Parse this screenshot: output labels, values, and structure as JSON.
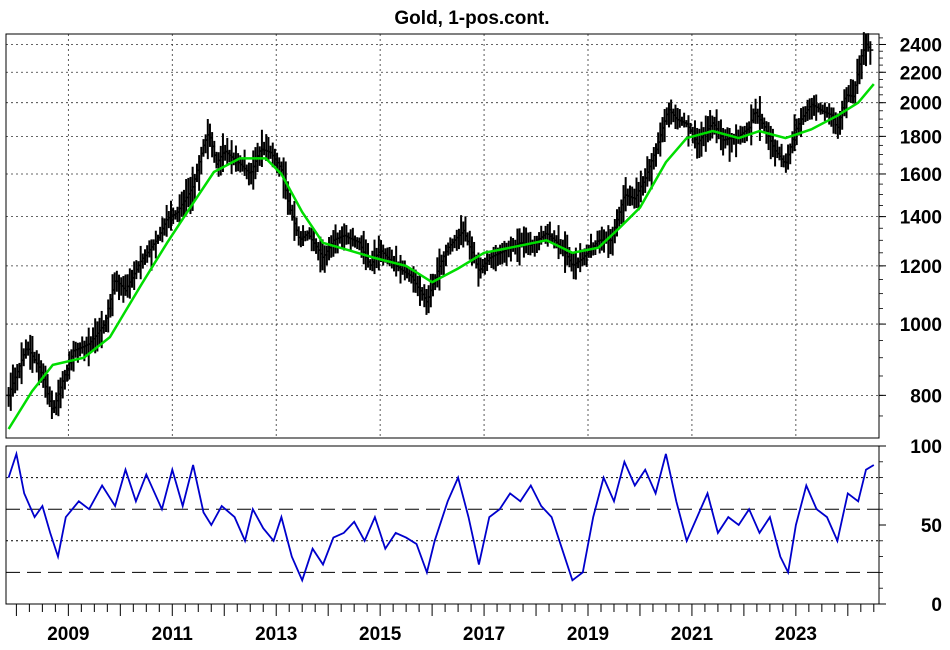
{
  "chart_data": [
    {
      "type": "bar",
      "subtype": "ohlc",
      "title": "Gold, 1-pos.cont.",
      "xlim": [
        2007.8,
        2024.6
      ],
      "ylim": [
        700,
        2480
      ],
      "y_scale": "log",
      "grid": true,
      "yticks": [
        800,
        1000,
        1200,
        1400,
        1600,
        1800,
        2000,
        2200,
        2400
      ],
      "ytick_labels": [
        "800",
        "1000",
        "1200",
        "1400",
        "1600",
        "1800",
        "2000",
        "2200",
        "2400"
      ],
      "xticks": [
        2009,
        2011,
        2013,
        2015,
        2017,
        2019,
        2021,
        2023
      ],
      "xtick_labels": [
        "2009",
        "2011",
        "2013",
        "2015",
        "2017",
        "2019",
        "2021",
        "2023"
      ],
      "colors": {
        "bars": "#000000",
        "moving_average": "#00dd00"
      },
      "anchors": [
        [
          2007.85,
          800
        ],
        [
          2008.2,
          930
        ],
        [
          2008.45,
          870
        ],
        [
          2008.7,
          760
        ],
        [
          2008.85,
          820
        ],
        [
          2009.1,
          920
        ],
        [
          2009.4,
          940
        ],
        [
          2009.7,
          1000
        ],
        [
          2009.9,
          1150
        ],
        [
          2010.1,
          1110
        ],
        [
          2010.4,
          1220
        ],
        [
          2010.7,
          1300
        ],
        [
          2010.9,
          1390
        ],
        [
          2011.1,
          1420
        ],
        [
          2011.4,
          1540
        ],
        [
          2011.6,
          1750
        ],
        [
          2011.7,
          1820
        ],
        [
          2011.85,
          1650
        ],
        [
          2012.0,
          1720
        ],
        [
          2012.3,
          1650
        ],
        [
          2012.5,
          1600
        ],
        [
          2012.7,
          1730
        ],
        [
          2012.9,
          1710
        ],
        [
          2013.1,
          1620
        ],
        [
          2013.25,
          1440
        ],
        [
          2013.45,
          1300
        ],
        [
          2013.6,
          1330
        ],
        [
          2013.9,
          1230
        ],
        [
          2014.1,
          1300
        ],
        [
          2014.3,
          1320
        ],
        [
          2014.6,
          1290
        ],
        [
          2014.8,
          1200
        ],
        [
          2015.0,
          1260
        ],
        [
          2015.3,
          1200
        ],
        [
          2015.6,
          1160
        ],
        [
          2015.9,
          1070
        ],
        [
          2016.1,
          1180
        ],
        [
          2016.3,
          1270
        ],
        [
          2016.6,
          1340
        ],
        [
          2016.9,
          1180
        ],
        [
          2017.1,
          1230
        ],
        [
          2017.4,
          1260
        ],
        [
          2017.7,
          1290
        ],
        [
          2017.9,
          1280
        ],
        [
          2018.2,
          1330
        ],
        [
          2018.5,
          1270
        ],
        [
          2018.7,
          1200
        ],
        [
          2018.9,
          1230
        ],
        [
          2019.2,
          1300
        ],
        [
          2019.45,
          1300
        ],
        [
          2019.7,
          1500
        ],
        [
          2019.9,
          1480
        ],
        [
          2020.1,
          1580
        ],
        [
          2020.3,
          1720
        ],
        [
          2020.55,
          1960
        ],
        [
          2020.7,
          1900
        ],
        [
          2020.9,
          1870
        ],
        [
          2021.1,
          1760
        ],
        [
          2021.4,
          1880
        ],
        [
          2021.6,
          1780
        ],
        [
          2021.9,
          1800
        ],
        [
          2022.1,
          1850
        ],
        [
          2022.2,
          1950
        ],
        [
          2022.4,
          1850
        ],
        [
          2022.6,
          1720
        ],
        [
          2022.8,
          1650
        ],
        [
          2022.95,
          1800
        ],
        [
          2023.1,
          1900
        ],
        [
          2023.3,
          1990
        ],
        [
          2023.5,
          1950
        ],
        [
          2023.7,
          1920
        ],
        [
          2023.8,
          1840
        ],
        [
          2023.95,
          2050
        ],
        [
          2024.1,
          2040
        ],
        [
          2024.25,
          2300
        ],
        [
          2024.35,
          2400
        ],
        [
          2024.45,
          2350
        ]
      ],
      "moving_average": [
        [
          2007.85,
          720
        ],
        [
          2008.3,
          810
        ],
        [
          2008.7,
          880
        ],
        [
          2009.3,
          900
        ],
        [
          2009.8,
          960
        ],
        [
          2010.4,
          1130
        ],
        [
          2010.9,
          1290
        ],
        [
          2011.4,
          1460
        ],
        [
          2011.8,
          1610
        ],
        [
          2012.3,
          1680
        ],
        [
          2012.8,
          1680
        ],
        [
          2013.1,
          1600
        ],
        [
          2013.5,
          1420
        ],
        [
          2013.9,
          1290
        ],
        [
          2014.4,
          1260
        ],
        [
          2014.9,
          1230
        ],
        [
          2015.5,
          1200
        ],
        [
          2016.0,
          1140
        ],
        [
          2016.5,
          1190
        ],
        [
          2017.0,
          1250
        ],
        [
          2017.5,
          1270
        ],
        [
          2018.2,
          1300
        ],
        [
          2018.7,
          1250
        ],
        [
          2019.2,
          1270
        ],
        [
          2019.6,
          1350
        ],
        [
          2020.0,
          1440
        ],
        [
          2020.5,
          1660
        ],
        [
          2020.9,
          1790
        ],
        [
          2021.4,
          1830
        ],
        [
          2021.9,
          1790
        ],
        [
          2022.3,
          1830
        ],
        [
          2022.8,
          1790
        ],
        [
          2023.3,
          1840
        ],
        [
          2023.8,
          1920
        ],
        [
          2024.2,
          2000
        ],
        [
          2024.5,
          2120
        ]
      ]
    },
    {
      "type": "line",
      "subtype": "oscillator",
      "xlim": [
        2007.8,
        2024.6
      ],
      "ylim": [
        0,
        100
      ],
      "yticks": [
        0,
        50,
        100
      ],
      "ytick_labels": [
        "0",
        "50",
        "100"
      ],
      "reference_lines": [
        {
          "value": 80,
          "style": "dotted"
        },
        {
          "value": 60,
          "style": "dashed"
        },
        {
          "value": 40,
          "style": "dotted"
        },
        {
          "value": 20,
          "style": "dashed"
        }
      ],
      "colors": {
        "line": "#0000cc"
      },
      "x": [
        2007.85,
        2008.0,
        2008.15,
        2008.35,
        2008.5,
        2008.65,
        2008.8,
        2008.95,
        2009.2,
        2009.4,
        2009.65,
        2009.9,
        2010.1,
        2010.3,
        2010.5,
        2010.8,
        2011.0,
        2011.2,
        2011.4,
        2011.6,
        2011.75,
        2011.95,
        2012.2,
        2012.4,
        2012.55,
        2012.75,
        2012.95,
        2013.1,
        2013.3,
        2013.5,
        2013.7,
        2013.9,
        2014.1,
        2014.3,
        2014.5,
        2014.7,
        2014.9,
        2015.1,
        2015.3,
        2015.5,
        2015.7,
        2015.9,
        2016.05,
        2016.3,
        2016.5,
        2016.7,
        2016.9,
        2017.1,
        2017.3,
        2017.5,
        2017.7,
        2017.9,
        2018.1,
        2018.3,
        2018.5,
        2018.7,
        2018.9,
        2019.1,
        2019.3,
        2019.5,
        2019.7,
        2019.9,
        2020.1,
        2020.3,
        2020.5,
        2020.7,
        2020.9,
        2021.1,
        2021.3,
        2021.5,
        2021.7,
        2021.9,
        2022.1,
        2022.3,
        2022.5,
        2022.7,
        2022.85,
        2023.0,
        2023.2,
        2023.4,
        2023.6,
        2023.8,
        2024.0,
        2024.2,
        2024.35,
        2024.5
      ],
      "values": [
        80,
        95,
        70,
        55,
        62,
        45,
        30,
        55,
        65,
        60,
        75,
        62,
        85,
        65,
        82,
        60,
        85,
        62,
        88,
        58,
        50,
        62,
        55,
        40,
        60,
        48,
        40,
        55,
        30,
        15,
        35,
        25,
        42,
        45,
        52,
        40,
        55,
        35,
        45,
        42,
        38,
        20,
        40,
        65,
        80,
        55,
        25,
        55,
        60,
        70,
        65,
        75,
        62,
        55,
        35,
        15,
        20,
        55,
        80,
        65,
        90,
        75,
        85,
        70,
        95,
        65,
        40,
        55,
        70,
        45,
        55,
        50,
        60,
        45,
        55,
        30,
        20,
        50,
        75,
        60,
        55,
        40,
        70,
        65,
        85,
        88
      ]
    }
  ]
}
